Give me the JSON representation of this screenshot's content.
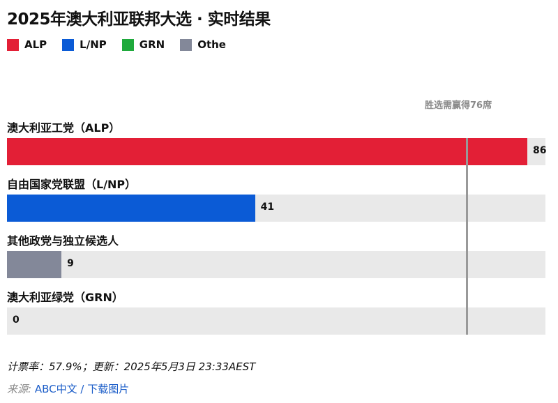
{
  "title": "2025年澳大利亚联邦大选 · 实时结果",
  "legend": [
    {
      "label": "ALP",
      "color": "#e31f36"
    },
    {
      "label": "L/NP",
      "color": "#0b5bd6"
    },
    {
      "label": "GRN",
      "color": "#1faa3c"
    },
    {
      "label": "Othe",
      "color": "#838899"
    }
  ],
  "majority_label": "胜选需赢得76席",
  "chart_data": {
    "type": "bar",
    "orientation": "horizontal",
    "categories": [
      "澳大利亚工党（ALP）",
      "自由国家党联盟（L/NP）",
      "其他政党与独立候选人",
      "澳大利亚绿党（GRN）"
    ],
    "values": [
      86,
      41,
      9,
      0
    ],
    "colors": [
      "#e31f36",
      "#0b5bd6",
      "#838899",
      "#1faa3c"
    ],
    "xlim": [
      0,
      89
    ],
    "reference_line": {
      "value": 76,
      "label": "胜选需赢得76席"
    }
  },
  "footer": {
    "text": "计票率：57.9%；更新：2025年5月3日 23:33AEST",
    "source_prefix": "来源: ",
    "source_link": "ABC中文",
    "separator": " / ",
    "download_link": "下载图片"
  }
}
